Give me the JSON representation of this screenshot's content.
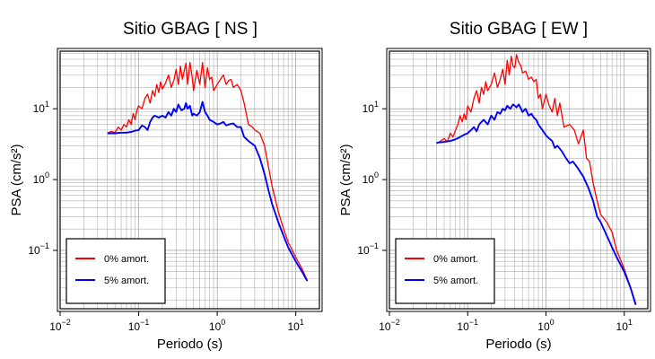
{
  "chart_data": [
    {
      "type": "line",
      "title": "Sitio GBAG [ NS ]",
      "xlabel": "Periodo (s)",
      "ylabel": "PSA (cm/s²)",
      "xscale": "log",
      "yscale": "log",
      "xlim": [
        0.01,
        20
      ],
      "ylim": [
        0.015,
        65
      ],
      "grid": true,
      "legend_position": "bottom-left",
      "xticks": [
        {
          "v": 0.01,
          "b": "10",
          "e": "−2"
        },
        {
          "v": 0.1,
          "b": "10",
          "e": "−1"
        },
        {
          "v": 1,
          "b": "10",
          "e": "0"
        },
        {
          "v": 10,
          "b": "10",
          "e": "1"
        }
      ],
      "yticks": [
        {
          "v": 0.1,
          "b": "10",
          "e": "−1"
        },
        {
          "v": 1,
          "b": "10",
          "e": "0"
        },
        {
          "v": 10,
          "b": "10",
          "e": "1"
        }
      ],
      "series": [
        {
          "name": "0% amort.",
          "color": "#ff0000",
          "x": [
            0.04,
            0.045,
            0.05,
            0.055,
            0.06,
            0.065,
            0.07,
            0.075,
            0.08,
            0.085,
            0.09,
            0.095,
            0.1,
            0.11,
            0.12,
            0.13,
            0.14,
            0.15,
            0.16,
            0.17,
            0.18,
            0.19,
            0.2,
            0.22,
            0.24,
            0.26,
            0.28,
            0.3,
            0.32,
            0.34,
            0.36,
            0.38,
            0.4,
            0.42,
            0.45,
            0.48,
            0.5,
            0.55,
            0.6,
            0.65,
            0.7,
            0.75,
            0.8,
            0.85,
            0.9,
            1.0,
            1.1,
            1.2,
            1.3,
            1.4,
            1.5,
            1.6,
            1.8,
            2.0,
            2.2,
            2.5,
            2.8,
            3.0,
            3.5,
            4.0,
            4.5,
            5.0,
            6.0,
            7.0,
            8.0,
            10.0,
            12.0,
            14.0
          ],
          "y": [
            4.5,
            4.8,
            4.6,
            5.5,
            5.0,
            6.0,
            5.5,
            7.0,
            6.0,
            8.5,
            7.0,
            9.5,
            11,
            10,
            14,
            16,
            12,
            18,
            15,
            22,
            17,
            24,
            19,
            23,
            30,
            20,
            25,
            36,
            22,
            40,
            26,
            34,
            44,
            22,
            45,
            28,
            18,
            35,
            22,
            45,
            20,
            38,
            26,
            28,
            18,
            22,
            26,
            30,
            22,
            25,
            26,
            20,
            22,
            18,
            12,
            6.0,
            5.5,
            5.0,
            4.5,
            3.0,
            1.5,
            0.8,
            0.35,
            0.2,
            0.13,
            0.08,
            0.055,
            0.038
          ]
        },
        {
          "name": "5% amort.",
          "color": "#0000ff",
          "x": [
            0.04,
            0.05,
            0.06,
            0.07,
            0.08,
            0.09,
            0.1,
            0.11,
            0.12,
            0.13,
            0.14,
            0.15,
            0.16,
            0.18,
            0.2,
            0.22,
            0.24,
            0.26,
            0.28,
            0.3,
            0.32,
            0.35,
            0.38,
            0.4,
            0.42,
            0.45,
            0.48,
            0.5,
            0.55,
            0.6,
            0.65,
            0.7,
            0.75,
            0.8,
            0.9,
            1.0,
            1.1,
            1.2,
            1.3,
            1.4,
            1.6,
            1.8,
            2.0,
            2.2,
            2.5,
            3.0,
            3.5,
            4.0,
            4.5,
            5.0,
            6.0,
            7.0,
            8.0,
            10.0,
            12.0,
            14.0
          ],
          "y": [
            4.5,
            4.5,
            4.6,
            4.6,
            4.7,
            4.9,
            5.0,
            5.8,
            5.5,
            5.0,
            6.5,
            7.5,
            8.0,
            7.5,
            8.0,
            7.5,
            9.0,
            8.0,
            10.0,
            9.0,
            11.5,
            9.5,
            10.0,
            12.0,
            10.0,
            11.0,
            8.0,
            8.5,
            8.0,
            9.0,
            12.5,
            9.0,
            8.0,
            7.0,
            6.5,
            6.0,
            6.2,
            6.5,
            5.8,
            6.0,
            6.2,
            5.5,
            5.5,
            4.0,
            3.5,
            3.0,
            2.0,
            1.2,
            0.7,
            0.45,
            0.25,
            0.16,
            0.11,
            0.07,
            0.05,
            0.037
          ]
        }
      ]
    },
    {
      "type": "line",
      "title": "Sitio GBAG [ EW ]",
      "xlabel": "Periodo (s)",
      "ylabel": "PSA (cm/s²)",
      "xscale": "log",
      "yscale": "log",
      "xlim": [
        0.01,
        20
      ],
      "ylim": [
        0.015,
        65
      ],
      "grid": true,
      "legend_position": "bottom-left",
      "xticks": [
        {
          "v": 0.01,
          "b": "10",
          "e": "−2"
        },
        {
          "v": 0.1,
          "b": "10",
          "e": "−1"
        },
        {
          "v": 1,
          "b": "10",
          "e": "0"
        },
        {
          "v": 10,
          "b": "10",
          "e": "1"
        }
      ],
      "yticks": [
        {
          "v": 0.1,
          "b": "10",
          "e": "−1"
        },
        {
          "v": 1,
          "b": "10",
          "e": "0"
        },
        {
          "v": 10,
          "b": "10",
          "e": "1"
        }
      ],
      "series": [
        {
          "name": "0% amort.",
          "color": "#ff0000",
          "x": [
            0.04,
            0.045,
            0.05,
            0.055,
            0.06,
            0.065,
            0.07,
            0.075,
            0.08,
            0.085,
            0.09,
            0.095,
            0.1,
            0.11,
            0.12,
            0.13,
            0.14,
            0.15,
            0.16,
            0.17,
            0.18,
            0.2,
            0.22,
            0.24,
            0.26,
            0.28,
            0.3,
            0.32,
            0.34,
            0.36,
            0.38,
            0.4,
            0.42,
            0.45,
            0.48,
            0.5,
            0.55,
            0.6,
            0.65,
            0.7,
            0.75,
            0.8,
            0.85,
            0.9,
            1.0,
            1.1,
            1.2,
            1.3,
            1.4,
            1.5,
            1.7,
            2.0,
            2.3,
            2.6,
            3.0,
            3.3,
            3.6,
            4.0,
            4.5,
            5.0,
            6.0,
            7.0,
            8.0,
            10.0,
            12.0,
            14.0
          ],
          "y": [
            3.2,
            3.5,
            3.8,
            3.4,
            4.5,
            4.0,
            5.0,
            6.0,
            8.0,
            6.5,
            8.5,
            7.0,
            11,
            9.0,
            14,
            18,
            12,
            20,
            16,
            24,
            18,
            22,
            32,
            20,
            26,
            36,
            22,
            48,
            30,
            55,
            40,
            38,
            58,
            45,
            40,
            32,
            34,
            26,
            28,
            24,
            26,
            14,
            16,
            10,
            16,
            11,
            9,
            14,
            8,
            12,
            5.5,
            6.0,
            5.0,
            3.2,
            5.0,
            2.0,
            1.8,
            0.9,
            0.5,
            0.32,
            0.25,
            0.18,
            0.1,
            0.055,
            0.03,
            0.018
          ]
        },
        {
          "name": "5% amort.",
          "color": "#0000ff",
          "x": [
            0.04,
            0.05,
            0.06,
            0.07,
            0.08,
            0.09,
            0.1,
            0.11,
            0.12,
            0.13,
            0.14,
            0.15,
            0.16,
            0.18,
            0.2,
            0.22,
            0.24,
            0.26,
            0.28,
            0.3,
            0.32,
            0.35,
            0.38,
            0.4,
            0.42,
            0.45,
            0.48,
            0.5,
            0.55,
            0.6,
            0.65,
            0.7,
            0.75,
            0.8,
            0.9,
            1.0,
            1.1,
            1.2,
            1.3,
            1.4,
            1.6,
            1.8,
            2.0,
            2.2,
            2.5,
            3.0,
            3.5,
            4.0,
            4.5,
            5.0,
            6.0,
            7.0,
            8.0,
            10.0,
            12.0,
            14.0
          ],
          "y": [
            3.3,
            3.4,
            3.5,
            3.7,
            4.0,
            4.3,
            4.5,
            5.0,
            5.5,
            4.8,
            6.0,
            6.5,
            7.0,
            6.0,
            8.0,
            7.0,
            9.0,
            8.5,
            10.0,
            9.5,
            11.0,
            10.0,
            11.5,
            11.0,
            10.5,
            11.5,
            10.0,
            9.0,
            10.0,
            8.0,
            8.5,
            7.5,
            7.0,
            6.0,
            5.0,
            4.2,
            3.8,
            3.5,
            2.8,
            3.0,
            2.5,
            2.0,
            1.7,
            1.8,
            1.5,
            1.1,
            0.75,
            0.5,
            0.3,
            0.25,
            0.16,
            0.11,
            0.08,
            0.05,
            0.03,
            0.017
          ]
        }
      ]
    }
  ]
}
